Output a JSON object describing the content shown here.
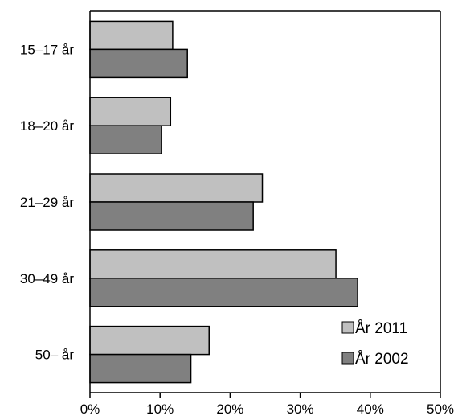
{
  "chart_data": {
    "type": "bar",
    "orientation": "horizontal",
    "categories": [
      "15–17 år",
      "18–20 år",
      "21–29 år",
      "30–49 år",
      "50– år"
    ],
    "series": [
      {
        "name": "År 2011",
        "values": [
          11.8,
          11.5,
          24.6,
          35.1,
          17.0
        ],
        "color": "#c0c0c0"
      },
      {
        "name": "År 2002",
        "values": [
          13.9,
          10.2,
          23.3,
          38.2,
          14.4
        ],
        "color": "#808080"
      }
    ],
    "xlim": [
      0,
      50
    ],
    "x_ticks": [
      "0%",
      "10%",
      "20%",
      "30%",
      "40%",
      "50%"
    ],
    "grid": false,
    "legend_position": "bottom-right"
  }
}
